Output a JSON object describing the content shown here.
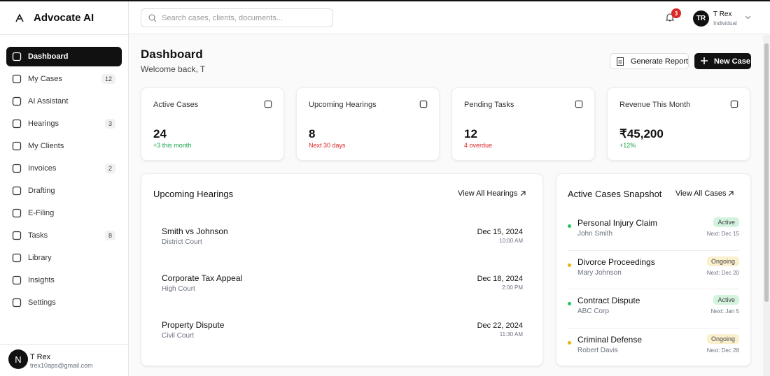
{
  "app": {
    "name": "Advocate AI"
  },
  "search": {
    "placeholder": "Search cases, clients, documents..."
  },
  "header": {
    "notifications": 3,
    "user": {
      "initials": "TR",
      "name": "T Rex",
      "plan": "Individual"
    }
  },
  "sidebar": {
    "nav": [
      {
        "label": "Dashboard",
        "active": true
      },
      {
        "label": "My Cases",
        "badge": 12
      },
      {
        "label": "AI Assistant"
      },
      {
        "label": "Hearings",
        "badge": 3
      },
      {
        "label": "My Clients"
      },
      {
        "label": "Invoices",
        "badge": 2
      },
      {
        "label": "Drafting"
      },
      {
        "label": "E-Filing"
      },
      {
        "label": "Tasks",
        "badge": 8
      },
      {
        "label": "Library"
      },
      {
        "label": "Insights"
      },
      {
        "label": "Settings"
      }
    ],
    "user": {
      "initial": "N",
      "name": "T Rex",
      "email": "trex10aps@gmail.com"
    }
  },
  "page": {
    "title": "Dashboard",
    "subtitle": "Welcome back, T",
    "actions": [
      "Generate Report",
      "New Case"
    ]
  },
  "stats": [
    {
      "label": "Active Cases",
      "value": 24,
      "note": "+3 this month",
      "color": "#16a34a"
    },
    {
      "label": "Upcoming Hearings",
      "value": 8,
      "note": "Next 30 days",
      "color": "#dc2626"
    },
    {
      "label": "Pending Tasks",
      "value": 12,
      "note": "4 overdue",
      "color": "#dc2626"
    },
    {
      "label": "Revenue This Month",
      "value": "₹45,200",
      "note": "+12%",
      "color": "#16a34a"
    }
  ],
  "hearings": {
    "title": "Upcoming Hearings",
    "link": "View All Hearings",
    "items": [
      {
        "case": "Smith vs Johnson",
        "court": "District Court",
        "date": "Dec 15, 2024",
        "time": "10:00 AM"
      },
      {
        "case": "Corporate Tax Appeal",
        "court": "High Court",
        "date": "Dec 18, 2024",
        "time": "2:00 PM"
      },
      {
        "case": "Property Dispute",
        "court": "Civil Court",
        "date": "Dec 22, 2024",
        "time": "11:30 AM"
      }
    ]
  },
  "snapshot": {
    "title": "Active Cases Snapshot",
    "link": "View All Cases",
    "items": [
      {
        "case": "Personal Injury Claim",
        "client": "John Smith",
        "status": "Active",
        "next": "Next: Dec 15",
        "color": "#22c55e"
      },
      {
        "case": "Divorce Proceedings",
        "client": "Mary Johnson",
        "status": "Ongoing",
        "next": "Next: Dec 20",
        "color": "#eab308"
      },
      {
        "case": "Contract Dispute",
        "client": "ABC Corp",
        "status": "Active",
        "next": "Next: Jan 5",
        "color": "#22c55e"
      },
      {
        "case": "Criminal Defense",
        "client": "Robert Davis",
        "status": "Ongoing",
        "next": "Next: Dec 28",
        "color": "#eab308"
      }
    ]
  }
}
